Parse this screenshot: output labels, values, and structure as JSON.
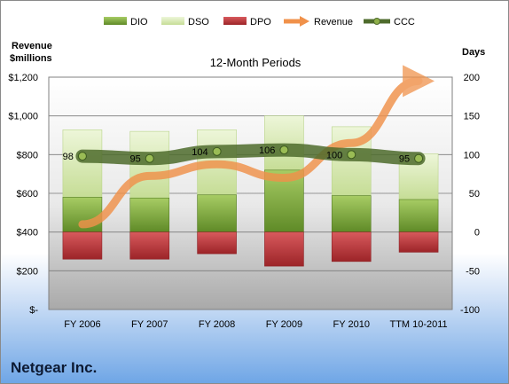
{
  "company": "Netgear Inc.",
  "chart_data": {
    "type": "bar",
    "title": "12-Month Periods",
    "categories": [
      "FY 2006",
      "FY 2007",
      "FY 2008",
      "FY 2009",
      "FY 2010",
      "TTM 10-2011"
    ],
    "left_axis": {
      "label_line1": "Revenue",
      "label_line2": "$millions",
      "ylim": [
        0,
        1200
      ],
      "ticks": [
        "$-",
        "$200",
        "$400",
        "$600",
        "$800",
        "$1,000",
        "$1,200"
      ]
    },
    "right_axis": {
      "label": "Days",
      "ylim": [
        -100,
        200
      ],
      "ticks": [
        "-100",
        "-50",
        "0",
        "50",
        "100",
        "150",
        "200"
      ]
    },
    "legend": {
      "position": "top",
      "items": [
        "DIO",
        "DSO",
        "DPO",
        "Revenue",
        "CCC"
      ]
    },
    "series": [
      {
        "name": "DIO",
        "axis": "right",
        "type": "stacked-bar",
        "values": [
          45,
          44,
          48,
          80,
          47,
          42
        ]
      },
      {
        "name": "DSO",
        "axis": "right",
        "type": "stacked-bar",
        "values": [
          87,
          86,
          84,
          70,
          89,
          59
        ]
      },
      {
        "name": "DPO",
        "axis": "right",
        "type": "stacked-bar-negative",
        "values": [
          -35,
          -35,
          -28,
          -44,
          -38,
          -26
        ]
      },
      {
        "name": "Revenue",
        "axis": "left",
        "type": "arrow-line",
        "values": [
          440,
          690,
          750,
          680,
          860,
          1180
        ]
      },
      {
        "name": "CCC",
        "axis": "right",
        "type": "line",
        "values": [
          98,
          95,
          104,
          106,
          100,
          95
        ]
      }
    ],
    "data_labels": [
      "98",
      "95",
      "104",
      "106",
      "100",
      "95"
    ],
    "grid": true,
    "colors": {
      "DIO": "#7aa53a",
      "DSO": "#cfe3a6",
      "DPO": "#b8353a",
      "Revenue": "#f0914a",
      "CCC": "#4e6b2c"
    }
  }
}
